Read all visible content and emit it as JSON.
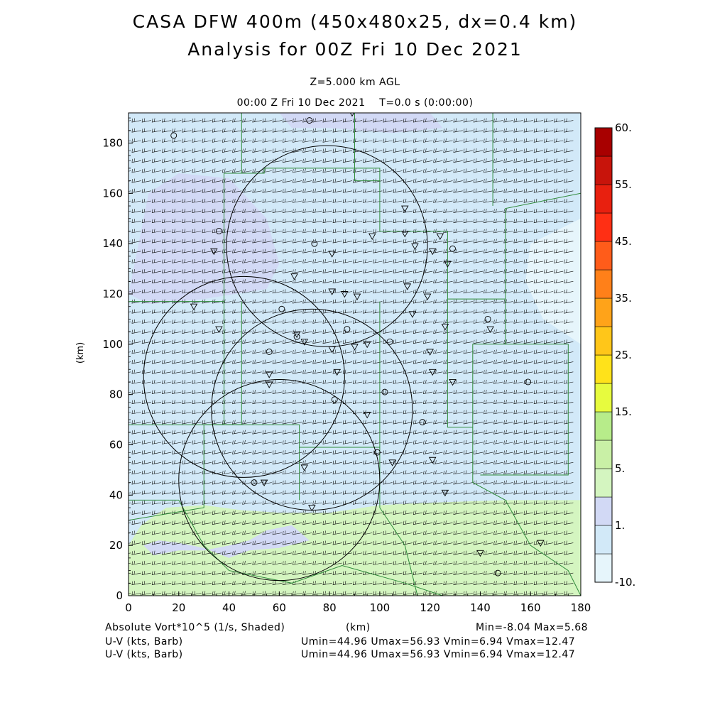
{
  "header": {
    "title_line1": "CASA DFW 400m (450x480x25, dx=0.4 km)",
    "title_line2": "Analysis for 00Z Fri 10 Dec 2021",
    "level": "Z=5.000 km AGL",
    "time": "00:00 Z Fri 10 Dec 2021    T=0.0 s (0:00:00)"
  },
  "footer": {
    "field_label": "Absolute Vort*10^5 (1/s, Shaded)",
    "x_unit": "(km)",
    "minmax": "Min=-8.04 Max=5.68",
    "barb1_label": "U-V (kts, Barb)",
    "barb1_stats": "Umin=44.96 Umax=56.93 Vmin=6.94 Vmax=12.47",
    "barb2_label": "U-V (kts, Barb)",
    "barb2_stats": "Umin=44.96 Umax=56.93 Vmin=6.94 Vmax=12.47"
  },
  "chart_data": {
    "type": "heatmap",
    "field": "Absolute Vort*10^5 (1/s, Shaded)",
    "xlabel": "",
    "ylabel": "(km)",
    "xlim": [
      0,
      180
    ],
    "ylim": [
      0,
      192
    ],
    "xticks": [
      0,
      20,
      40,
      60,
      80,
      100,
      120,
      140,
      160,
      180
    ],
    "yticks": [
      0,
      20,
      40,
      60,
      80,
      100,
      120,
      140,
      160,
      180
    ],
    "field_min": -8.04,
    "field_max": 5.68,
    "colorbar": {
      "levels": [
        -10,
        0,
        1,
        3,
        5,
        10,
        15,
        20,
        25,
        30,
        35,
        40,
        45,
        50,
        55,
        60
      ],
      "colors": [
        "#e6f5fb",
        "#d2e9f8",
        "#d2d9f5",
        "#d4f5c0",
        "#c9f0a6",
        "#b7ec8a",
        "#e7fb3e",
        "#ffe21a",
        "#ffc619",
        "#ffa319",
        "#ff8019",
        "#ff5c1a",
        "#ff2f14",
        "#e8200f",
        "#c8140b",
        "#a80000"
      ],
      "tick_labels": [
        {
          "text": "-10.",
          "level": -10
        },
        {
          "text": "1.",
          "level": 0
        },
        {
          "text": "5.",
          "level": 3
        },
        {
          "text": "15.",
          "level": 10
        },
        {
          "text": "25.",
          "level": 20
        },
        {
          "text": "35.",
          "level": 30
        },
        {
          "text": "45.",
          "level": 40
        },
        {
          "text": "55.",
          "level": 50
        },
        {
          "text": "60.",
          "level": 60
        }
      ]
    },
    "regions": [
      {
        "level_index": 1,
        "polygon": [
          [
            0,
            0
          ],
          [
            180,
            0
          ],
          [
            180,
            192
          ],
          [
            0,
            192
          ]
        ]
      },
      {
        "level_index": 2,
        "polygon": [
          [
            0,
            120
          ],
          [
            4,
            140
          ],
          [
            8,
            160
          ],
          [
            20,
            168
          ],
          [
            40,
            166
          ],
          [
            55,
            150
          ],
          [
            60,
            132
          ],
          [
            55,
            122
          ],
          [
            30,
            118
          ],
          [
            8,
            116
          ]
        ]
      },
      {
        "level_index": 2,
        "polygon": [
          [
            60,
            192
          ],
          [
            120,
            192
          ],
          [
            125,
            186
          ],
          [
            105,
            184
          ],
          [
            80,
            186
          ],
          [
            65,
            186
          ]
        ]
      },
      {
        "level_index": 2,
        "polygon": [
          [
            0,
            20
          ],
          [
            5,
            28
          ],
          [
            15,
            35
          ],
          [
            30,
            36
          ],
          [
            45,
            34
          ],
          [
            60,
            33
          ],
          [
            80,
            33
          ],
          [
            100,
            36
          ],
          [
            90,
            30
          ],
          [
            70,
            28
          ],
          [
            55,
            26
          ],
          [
            48,
            22
          ],
          [
            40,
            20
          ],
          [
            30,
            18
          ],
          [
            20,
            18
          ],
          [
            10,
            16
          ]
        ]
      },
      {
        "level_index": 3,
        "polygon": [
          [
            0,
            0
          ],
          [
            180,
            0
          ],
          [
            180,
            38
          ],
          [
            150,
            38
          ],
          [
            120,
            37
          ],
          [
            100,
            36
          ],
          [
            80,
            33
          ],
          [
            60,
            33
          ],
          [
            45,
            34
          ],
          [
            30,
            36
          ],
          [
            15,
            35
          ],
          [
            5,
            28
          ],
          [
            0,
            20
          ]
        ]
      },
      {
        "level_index": 2,
        "polygon": [
          [
            6,
            20
          ],
          [
            10,
            16
          ],
          [
            20,
            18
          ],
          [
            30,
            18
          ],
          [
            40,
            20
          ],
          [
            48,
            22
          ],
          [
            55,
            26
          ],
          [
            65,
            28
          ],
          [
            72,
            22
          ],
          [
            60,
            19
          ],
          [
            48,
            18
          ],
          [
            40,
            15
          ],
          [
            30,
            19
          ],
          [
            20,
            21
          ],
          [
            12,
            22
          ]
        ]
      },
      {
        "level_index": 0,
        "polygon": [
          [
            160,
            140
          ],
          [
            180,
            150
          ],
          [
            180,
            100
          ],
          [
            165,
            110
          ],
          [
            158,
            125
          ]
        ]
      }
    ],
    "wind": {
      "u_range_kts": [
        44.96,
        56.93
      ],
      "v_range_kts": [
        6.94,
        12.47
      ],
      "grid_spacing_km": [
        4,
        4
      ]
    },
    "radar_rings": [
      {
        "center_km": [
          79,
          139
        ],
        "radius_km": 40
      },
      {
        "center_km": [
          46,
          87
        ],
        "radius_km": 40
      },
      {
        "center_km": [
          60,
          46
        ],
        "radius_km": 40
      },
      {
        "center_km": [
          73,
          74
        ],
        "radius_km": 40
      }
    ],
    "boundaries": [
      [
        [
          0,
          117
        ],
        [
          38,
          117
        ],
        [
          38,
          168
        ],
        [
          54,
          168
        ],
        [
          54,
          170
        ],
        [
          100,
          170
        ],
        [
          100,
          145
        ],
        [
          127,
          145
        ],
        [
          127,
          118
        ],
        [
          150,
          118
        ],
        [
          150,
          100
        ],
        [
          137,
          100
        ],
        [
          137,
          67
        ]
      ],
      [
        [
          0,
          68
        ],
        [
          38,
          68
        ],
        [
          38,
          117
        ]
      ],
      [
        [
          38,
          68
        ],
        [
          68,
          68
        ],
        [
          68,
          59
        ],
        [
          100,
          59
        ],
        [
          100,
          35
        ]
      ],
      [
        [
          68,
          59
        ],
        [
          68,
          38
        ]
      ],
      [
        [
          45,
          117
        ],
        [
          45,
          68
        ]
      ],
      [
        [
          100,
          117
        ],
        [
          100,
          59
        ]
      ],
      [
        [
          127,
          118
        ],
        [
          127,
          67
        ],
        [
          137,
          67
        ],
        [
          137,
          45
        ],
        [
          150,
          38
        ],
        [
          160,
          20
        ],
        [
          175,
          10
        ],
        [
          180,
          0
        ]
      ],
      [
        [
          150,
          118
        ],
        [
          150,
          154
        ],
        [
          180,
          160
        ]
      ],
      [
        [
          150,
          100
        ],
        [
          175,
          100
        ],
        [
          175,
          48
        ],
        [
          140,
          48
        ]
      ],
      [
        [
          45,
          68
        ],
        [
          30,
          68
        ],
        [
          30,
          35
        ],
        [
          0,
          30
        ]
      ],
      [
        [
          0,
          38
        ],
        [
          20,
          38
        ],
        [
          30,
          20
        ],
        [
          40,
          10
        ],
        [
          65,
          5
        ],
        [
          85,
          12
        ],
        [
          110,
          5
        ],
        [
          125,
          0
        ]
      ],
      [
        [
          90,
          192
        ],
        [
          90,
          165
        ],
        [
          100,
          165
        ]
      ],
      [
        [
          45,
          192
        ],
        [
          45,
          168
        ]
      ],
      [
        [
          145,
          192
        ],
        [
          145,
          155
        ]
      ],
      [
        [
          100,
          35
        ],
        [
          110,
          20
        ],
        [
          115,
          0
        ]
      ]
    ],
    "station_markers": [
      {
        "kind": "circle",
        "x": 18,
        "y": 183
      },
      {
        "kind": "circle",
        "x": 72,
        "y": 189
      },
      {
        "kind": "triangle",
        "x": 89,
        "y": 192
      },
      {
        "kind": "circle",
        "x": 36,
        "y": 145
      },
      {
        "kind": "triangle",
        "x": 34,
        "y": 137
      },
      {
        "kind": "circle",
        "x": 74,
        "y": 140
      },
      {
        "kind": "triangle",
        "x": 81,
        "y": 136
      },
      {
        "kind": "triangle",
        "x": 97,
        "y": 143
      },
      {
        "kind": "triangle",
        "x": 110,
        "y": 154
      },
      {
        "kind": "triangle",
        "x": 110,
        "y": 144
      },
      {
        "kind": "triangle",
        "x": 114,
        "y": 139
      },
      {
        "kind": "triangle",
        "x": 121,
        "y": 137
      },
      {
        "kind": "triangle",
        "x": 124,
        "y": 143
      },
      {
        "kind": "circle",
        "x": 129,
        "y": 138
      },
      {
        "kind": "triangle",
        "x": 127,
        "y": 132
      },
      {
        "kind": "triangle",
        "x": 66,
        "y": 127
      },
      {
        "kind": "triangle",
        "x": 81,
        "y": 121
      },
      {
        "kind": "triangle",
        "x": 86,
        "y": 120
      },
      {
        "kind": "triangle",
        "x": 91,
        "y": 119
      },
      {
        "kind": "triangle",
        "x": 111,
        "y": 123
      },
      {
        "kind": "triangle",
        "x": 119,
        "y": 119
      },
      {
        "kind": "triangle",
        "x": 26,
        "y": 115
      },
      {
        "kind": "circle",
        "x": 61,
        "y": 114
      },
      {
        "kind": "triangle",
        "x": 113,
        "y": 112
      },
      {
        "kind": "circle",
        "x": 143,
        "y": 110
      },
      {
        "kind": "triangle",
        "x": 126,
        "y": 107
      },
      {
        "kind": "triangle",
        "x": 144,
        "y": 106
      },
      {
        "kind": "triangle",
        "x": 36,
        "y": 106
      },
      {
        "kind": "circle",
        "x": 87,
        "y": 106
      },
      {
        "kind": "triangle",
        "x": 67,
        "y": 104
      },
      {
        "kind": "circle",
        "x": 67,
        "y": 103
      },
      {
        "kind": "triangle",
        "x": 70,
        "y": 101
      },
      {
        "kind": "circle",
        "x": 104,
        "y": 101
      },
      {
        "kind": "triangle",
        "x": 95,
        "y": 100
      },
      {
        "kind": "triangle",
        "x": 90,
        "y": 99
      },
      {
        "kind": "triangle",
        "x": 81,
        "y": 98
      },
      {
        "kind": "circle",
        "x": 56,
        "y": 97
      },
      {
        "kind": "triangle",
        "x": 120,
        "y": 97
      },
      {
        "kind": "triangle",
        "x": 83,
        "y": 89
      },
      {
        "kind": "triangle",
        "x": 121,
        "y": 89
      },
      {
        "kind": "triangle",
        "x": 56,
        "y": 88
      },
      {
        "kind": "triangle",
        "x": 56,
        "y": 84
      },
      {
        "kind": "triangle",
        "x": 129,
        "y": 85
      },
      {
        "kind": "circle",
        "x": 159,
        "y": 85
      },
      {
        "kind": "circle",
        "x": 102,
        "y": 81
      },
      {
        "kind": "circle",
        "x": 82,
        "y": 78
      },
      {
        "kind": "triangle",
        "x": 95,
        "y": 72
      },
      {
        "kind": "circle",
        "x": 117,
        "y": 69
      },
      {
        "kind": "circle",
        "x": 99,
        "y": 57
      },
      {
        "kind": "triangle",
        "x": 105,
        "y": 53
      },
      {
        "kind": "triangle",
        "x": 121,
        "y": 54
      },
      {
        "kind": "triangle",
        "x": 70,
        "y": 51
      },
      {
        "kind": "circle",
        "x": 50,
        "y": 45
      },
      {
        "kind": "triangle",
        "x": 54,
        "y": 45
      },
      {
        "kind": "triangle",
        "x": 126,
        "y": 41
      },
      {
        "kind": "triangle",
        "x": 73,
        "y": 35
      },
      {
        "kind": "triangle",
        "x": 140,
        "y": 17
      },
      {
        "kind": "triangle",
        "x": 164,
        "y": 21
      },
      {
        "kind": "circle",
        "x": 147,
        "y": 9
      }
    ]
  }
}
